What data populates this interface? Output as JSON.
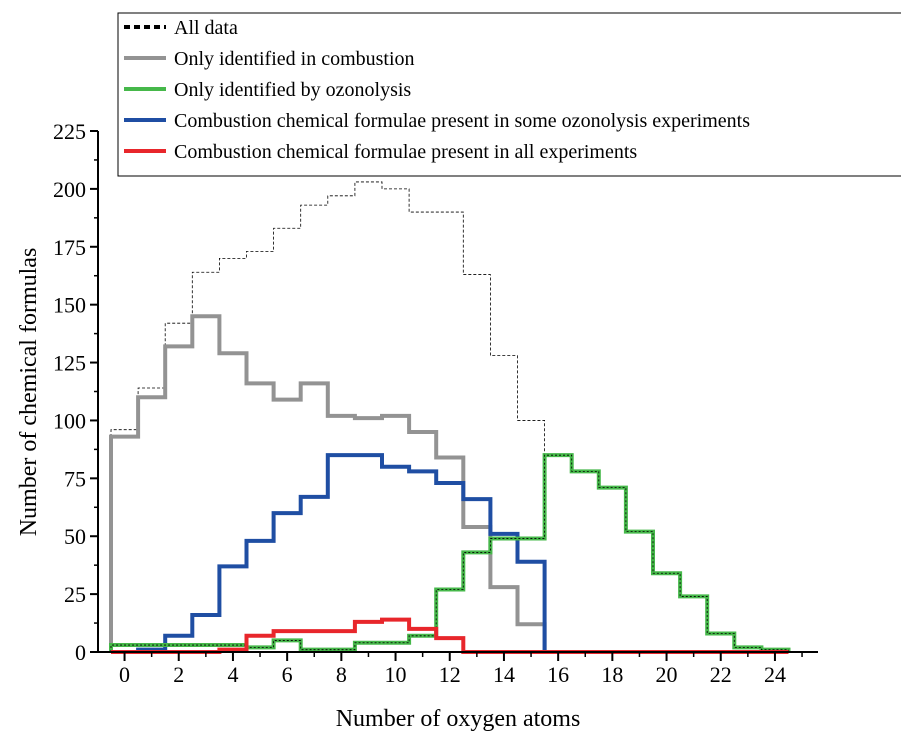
{
  "chart_data": {
    "type": "bar",
    "xlabel": "Number of oxygen atoms",
    "ylabel": "Number of chemical formulas",
    "xlim": [
      -0.5,
      25.5
    ],
    "ylim": [
      0,
      225
    ],
    "x_tick_labels": [
      "0",
      "2",
      "4",
      "6",
      "8",
      "10",
      "12",
      "14",
      "16",
      "18",
      "20",
      "22",
      "24"
    ],
    "y_tick_labels": [
      "0",
      "25",
      "50",
      "75",
      "100",
      "125",
      "150",
      "175",
      "200",
      "225"
    ],
    "x": [
      0,
      1,
      2,
      3,
      4,
      5,
      6,
      7,
      8,
      9,
      10,
      11,
      12,
      13,
      14,
      15,
      16,
      17,
      18,
      19,
      20,
      21,
      22,
      23,
      24
    ],
    "legend_position": "top-right",
    "series": [
      {
        "name": "All data",
        "color": "#000000",
        "style": "dashed",
        "values": [
          96,
          114,
          142,
          164,
          170,
          173,
          183,
          193,
          197,
          203,
          200,
          190,
          190,
          163,
          128,
          100,
          85,
          78,
          71,
          52,
          34,
          24,
          8,
          2,
          1
        ]
      },
      {
        "name": "Only identified in combustion",
        "color": "#939393",
        "style": "solid",
        "values": [
          93,
          110,
          132,
          145,
          129,
          116,
          109,
          116,
          102,
          101,
          102,
          95,
          84,
          54,
          28,
          12,
          0,
          0,
          0,
          0,
          0,
          0,
          0,
          0,
          0
        ]
      },
      {
        "name": "Only identified by ozonolysis",
        "color": "#46b84a",
        "style": "solid",
        "values": [
          3,
          3,
          3,
          3,
          3,
          2,
          5,
          1,
          1,
          4,
          4,
          7,
          27,
          43,
          49,
          49,
          85,
          78,
          71,
          52,
          34,
          24,
          8,
          2,
          1
        ]
      },
      {
        "name": "Combustion chemical formulae present in some ozonolysis experiments",
        "color": "#1f4ea3",
        "style": "solid",
        "values": [
          0,
          1,
          7,
          16,
          37,
          48,
          60,
          67,
          85,
          85,
          80,
          78,
          73,
          66,
          51,
          39,
          0,
          0,
          0,
          0,
          0,
          0,
          0,
          0,
          0
        ]
      },
      {
        "name": "Combustion chemical formulae present in all experiments",
        "color": "#e8262b",
        "style": "solid",
        "values": [
          0,
          0,
          0,
          0,
          1,
          7,
          9,
          9,
          9,
          13,
          14,
          10,
          6,
          0,
          0,
          0,
          0,
          0,
          0,
          0,
          0,
          0,
          0,
          0,
          0
        ]
      }
    ]
  }
}
